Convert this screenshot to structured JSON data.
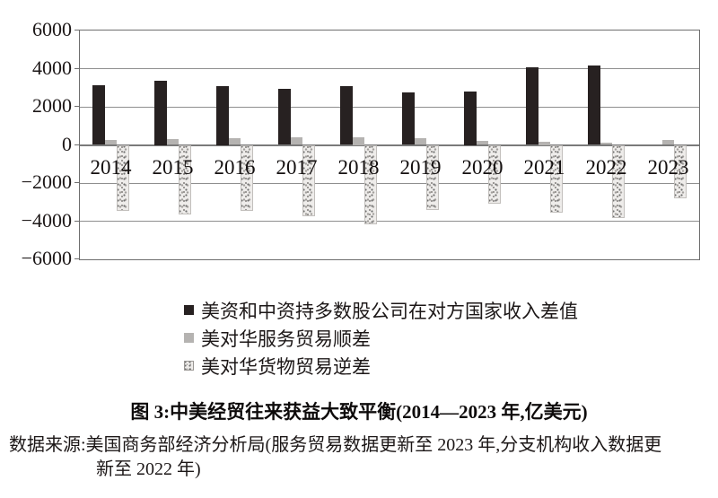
{
  "figure": {
    "caption": "图 3:中美经贸往来获益大致平衡(2014—2023 年,亿美元)",
    "source_line1": "数据来源:美国商务部经济分析局(服务贸易数据更新至 2023 年,分支机构收入数据更",
    "source_line2": "新至 2022 年)"
  },
  "chart_data": {
    "type": "bar",
    "title": "图 3:中美经贸往来获益大致平衡(2014—2023 年,亿美元)",
    "categories": [
      "2014",
      "2015",
      "2016",
      "2017",
      "2018",
      "2019",
      "2020",
      "2021",
      "2022",
      "2023"
    ],
    "series": [
      {
        "name": "美资和中资持多数股公司在对方国家收入差值",
        "style": "solid-black",
        "color": "#272121",
        "values": [
          3130,
          3350,
          3100,
          2960,
          3090,
          2770,
          2800,
          4080,
          4180,
          null
        ]
      },
      {
        "name": "美对华服务贸易顺差",
        "style": "solid-gray",
        "color": "#b5b3b1",
        "values": [
          270,
          310,
          360,
          380,
          400,
          360,
          230,
          150,
          120,
          280
        ]
      },
      {
        "name": "美对华货物贸易逆差",
        "style": "speckled",
        "color": "#eeecea",
        "values": [
          -3440,
          -3670,
          -3470,
          -3750,
          -4180,
          -3420,
          -3100,
          -3530,
          -3820,
          -2790
        ]
      }
    ],
    "ylim": [
      -6000,
      6000
    ],
    "ytick_step": 2000,
    "yticks": [
      "6000",
      "4000",
      "2000",
      "0",
      "−2000",
      "−4000",
      "−6000"
    ],
    "grid": true,
    "legend_position": "below-chart",
    "unit": "亿美元"
  }
}
